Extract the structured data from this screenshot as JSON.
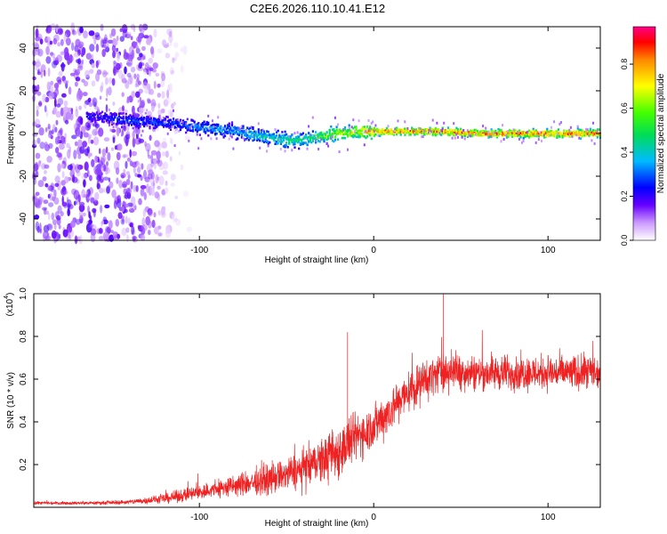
{
  "figure": {
    "title": "C2E6.2026.110.10.41.E12"
  },
  "colors": {
    "background": "#ffffff",
    "axis": "#000000",
    "snr_line": "#ee2222",
    "spectrogram_dots": "#5a1ee0"
  },
  "chart_data": [
    {
      "type": "heatmap",
      "name": "spectrogram",
      "xlabel": "Height of straight line (km)",
      "ylabel": "Frequency (Hz)",
      "xlim": [
        -195,
        130
      ],
      "ylim": [
        -50,
        50
      ],
      "x_ticks": [
        -100,
        0,
        100
      ],
      "x_tick_labels": [
        "-100",
        "0",
        "100"
      ],
      "y_ticks": [
        -40,
        -20,
        0,
        20,
        40
      ],
      "y_tick_labels": [
        "-40",
        "-20",
        "0",
        "20",
        "40"
      ],
      "ridge": {
        "description": "frequency of the high-amplitude ridge vs height",
        "x": [
          -160,
          -140,
          -120,
          -100,
          -80,
          -60,
          -50,
          -40,
          -30,
          -20,
          -10,
          0,
          20,
          40,
          60,
          80,
          100,
          130
        ],
        "y": [
          8,
          6,
          5,
          3,
          1,
          -2,
          -3,
          -3,
          -1,
          0,
          1,
          1,
          1,
          1,
          0,
          0,
          0,
          0
        ],
        "peak_amplitude": [
          0.25,
          0.3,
          0.3,
          0.35,
          0.4,
          0.45,
          0.5,
          0.5,
          0.6,
          0.7,
          0.75,
          0.85,
          0.9,
          0.9,
          0.9,
          0.9,
          0.9,
          0.9
        ]
      },
      "noise_region": {
        "x_from": -195,
        "x_to": -105,
        "amplitude": 0.15
      }
    },
    {
      "type": "colorbar",
      "name": "amplitude-colorbar",
      "label": "Normalized spectral amplitude",
      "range": [
        0,
        0.97
      ],
      "ticks": [
        0.0,
        0.2,
        0.4,
        0.6,
        0.8
      ],
      "tick_labels": [
        "0.0",
        "0.2",
        "0.4",
        "0.6",
        "0.8"
      ],
      "stops": [
        {
          "value": 0.0,
          "color": "#ffffff"
        },
        {
          "value": 0.08,
          "color": "#cc99ff"
        },
        {
          "value": 0.16,
          "color": "#6600ff"
        },
        {
          "value": 0.24,
          "color": "#0000ff"
        },
        {
          "value": 0.36,
          "color": "#00bbff"
        },
        {
          "value": 0.48,
          "color": "#00dd55"
        },
        {
          "value": 0.58,
          "color": "#44ff00"
        },
        {
          "value": 0.7,
          "color": "#ffff00"
        },
        {
          "value": 0.82,
          "color": "#ff8800"
        },
        {
          "value": 0.9,
          "color": "#ff0000"
        },
        {
          "value": 0.97,
          "color": "#ff0088"
        }
      ]
    },
    {
      "type": "line",
      "name": "snr",
      "xlabel": "Height of straight line (km)",
      "ylabel": "SNR (10 * v/v)",
      "scale_label": "(x10",
      "scale_exponent": "4",
      "scale_suffix": ")",
      "xlim": [
        -195,
        130
      ],
      "ylim": [
        0,
        1.0
      ],
      "x_ticks": [
        -100,
        0,
        100
      ],
      "x_tick_labels": [
        "-100",
        "0",
        "100"
      ],
      "y_ticks": [
        0.2,
        0.4,
        0.6,
        0.8,
        1.0
      ],
      "y_tick_labels": [
        "0.2",
        "0.4",
        "0.6",
        "0.8",
        "1.0"
      ],
      "envelope": {
        "description": "approximate mean SNR (units of 10^4) vs height; signal is highly noisy around this",
        "x": [
          -195,
          -160,
          -140,
          -120,
          -100,
          -80,
          -60,
          -40,
          -20,
          -10,
          0,
          10,
          20,
          30,
          40,
          60,
          80,
          100,
          130
        ],
        "mean": [
          0.02,
          0.02,
          0.025,
          0.04,
          0.07,
          0.1,
          0.13,
          0.18,
          0.26,
          0.33,
          0.38,
          0.46,
          0.54,
          0.6,
          0.64,
          0.63,
          0.63,
          0.63,
          0.63
        ],
        "spread": [
          0.01,
          0.01,
          0.015,
          0.03,
          0.05,
          0.07,
          0.09,
          0.12,
          0.17,
          0.15,
          0.14,
          0.14,
          0.13,
          0.13,
          0.12,
          0.11,
          0.11,
          0.11,
          0.11
        ]
      },
      "spikes": [
        {
          "x": -15,
          "y": 0.82
        },
        {
          "x": 40,
          "y": 1.0
        }
      ]
    }
  ]
}
